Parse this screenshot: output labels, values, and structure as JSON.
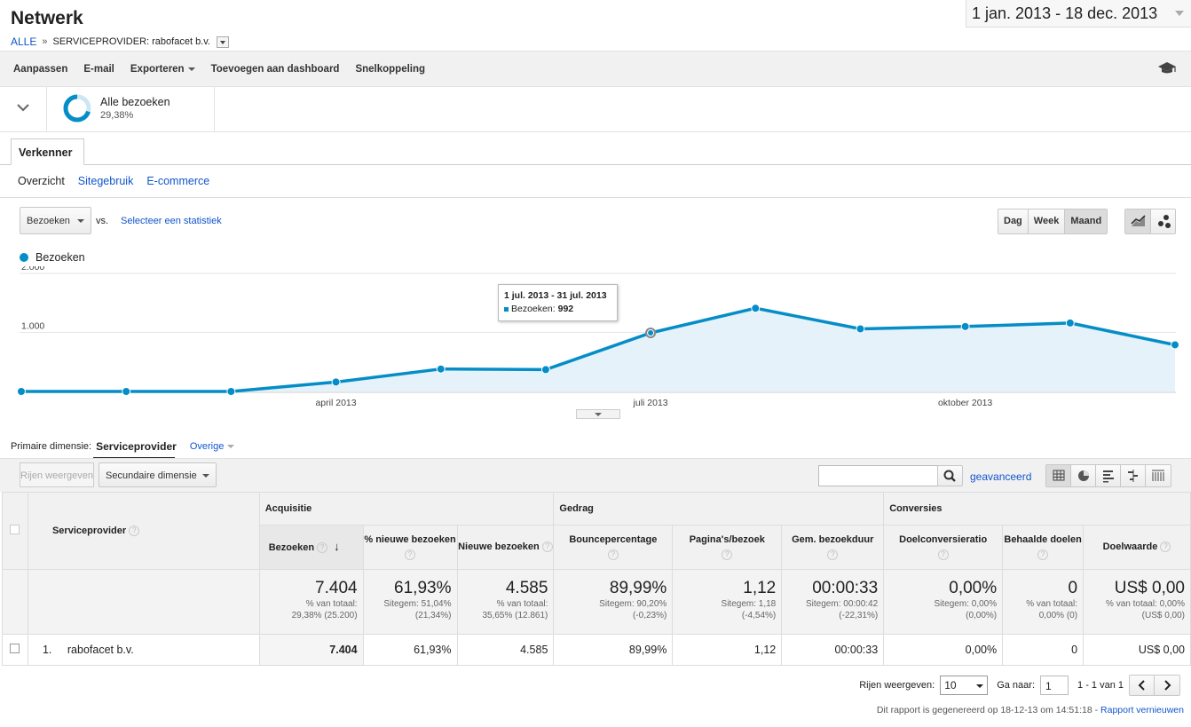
{
  "header": {
    "title": "Netwerk",
    "breadcrumb_root": "ALLE",
    "breadcrumb_sep": "»",
    "breadcrumb_current": "SERVICEPROVIDER: rabofacet b.v.",
    "date_range": "1 jan. 2013 - 18 dec. 2013"
  },
  "toolbar": {
    "customize": "Aanpassen",
    "email": "E-mail",
    "export": "Exporteren",
    "add_dashboard": "Toevoegen aan dashboard",
    "shortcut": "Snelkoppeling",
    "education_icon": "mortarboard-icon"
  },
  "segment": {
    "name": "Alle bezoeken",
    "percent": "29,38%",
    "fraction": 0.2938
  },
  "tabs": {
    "explorer": "Verkenner",
    "subtabs": [
      "Overzicht",
      "Sitegebruik",
      "E-commerce"
    ]
  },
  "chart_controls": {
    "metric": "Bezoeken",
    "vs": "vs.",
    "select_stat": "Selecteer een statistiek",
    "periods": [
      "Dag",
      "Week",
      "Maand"
    ],
    "selected_period": "Maand"
  },
  "chart_data": {
    "type": "area",
    "series": [
      {
        "name": "Bezoeken",
        "color": "#058dc7"
      }
    ],
    "x": [
      "2013-01",
      "2013-02",
      "2013-03",
      "2013-04",
      "2013-05",
      "2013-06",
      "2013-07",
      "2013-08",
      "2013-09",
      "2013-10",
      "2013-11",
      "2013-12"
    ],
    "values": [
      0,
      0,
      0,
      160,
      380,
      370,
      992,
      1410,
      1060,
      1100,
      1160,
      790
    ],
    "y_ticks": [
      "2.000",
      "1.000"
    ],
    "y_tick_values": [
      2000,
      1000
    ],
    "ylim": [
      0,
      2000
    ],
    "x_tick_labels": [
      "april 2013",
      "juli 2013",
      "oktober 2013"
    ],
    "x_tick_index": [
      3,
      6,
      9
    ],
    "grid": true,
    "tooltip": {
      "title": "1 jul. 2013 - 31 jul. 2013",
      "label": "Bezoeken:",
      "value": "992",
      "index": 6
    }
  },
  "dimensions": {
    "label": "Primaire dimensie:",
    "selected": "Serviceprovider",
    "other": "Overige"
  },
  "table_toolbar": {
    "show_rows": "Rijen weergeven",
    "secondary_dim": "Secundaire dimensie",
    "search_placeholder": "",
    "advanced": "geavanceerd"
  },
  "table": {
    "dim_header": "Serviceprovider",
    "groups": [
      "Acquisitie",
      "Gedrag",
      "Conversies"
    ],
    "columns": [
      "Bezoeken",
      "% nieuwe bezoeken",
      "Nieuwe bezoeken",
      "Bouncepercentage",
      "Pagina's/bezoek",
      "Gem. bezoekduur",
      "Doelconversieratio",
      "Behaalde doelen",
      "Doelwaarde"
    ],
    "totals": [
      {
        "value": "7.404",
        "sub1": "% van totaal:",
        "sub2": "29,38% (25.200)"
      },
      {
        "value": "61,93%",
        "sub1": "Sitegem: 51,04%",
        "sub2": "(21,34%)"
      },
      {
        "value": "4.585",
        "sub1": "% van totaal:",
        "sub2": "35,65% (12.861)"
      },
      {
        "value": "89,99%",
        "sub1": "Sitegem: 90,20%",
        "sub2": "(-0,23%)"
      },
      {
        "value": "1,12",
        "sub1": "Sitegem: 1,18",
        "sub2": "(-4,54%)"
      },
      {
        "value": "00:00:33",
        "sub1": "Sitegem: 00:00:42",
        "sub2": "(-22,31%)"
      },
      {
        "value": "0,00%",
        "sub1": "Sitegem: 0,00%",
        "sub2": "(0,00%)"
      },
      {
        "value": "0",
        "sub1": "% van totaal:",
        "sub2": "0,00% (0)"
      },
      {
        "value": "US$ 0,00",
        "sub1": "% van totaal: 0,00%",
        "sub2": "(US$ 0,00)"
      }
    ],
    "rows": [
      {
        "index": "1.",
        "name": "rabofacet b.v.",
        "cells": [
          "7.404",
          "61,93%",
          "4.585",
          "89,99%",
          "1,12",
          "00:00:33",
          "0,00%",
          "0",
          "US$ 0,00"
        ]
      }
    ]
  },
  "pager": {
    "rows_label": "Rijen weergeven:",
    "rows_value": "10",
    "goto_label": "Ga naar:",
    "goto_value": "1",
    "range": "1 - 1 van 1"
  },
  "footer": {
    "generated": "Dit rapport is gegenereerd op 18-12-13 om 14:51:18 -",
    "refresh": "Rapport vernieuwen"
  }
}
